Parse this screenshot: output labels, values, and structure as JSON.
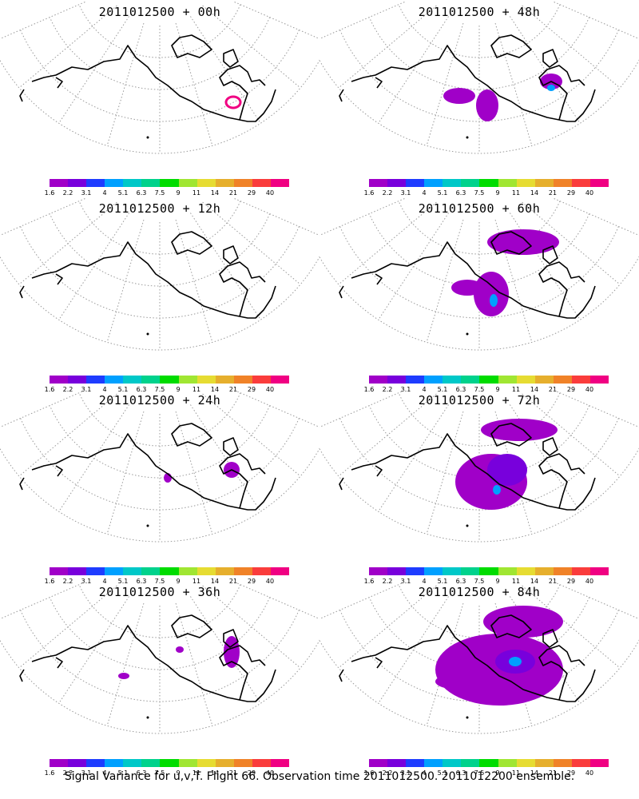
{
  "panels": [
    {
      "title": "2011012500 + 00h"
    },
    {
      "title": "2011012500 + 48h"
    },
    {
      "title": "2011012500 + 12h"
    },
    {
      "title": "2011012500 + 60h"
    },
    {
      "title": "2011012500 + 24h"
    },
    {
      "title": "2011012500 + 72h"
    },
    {
      "title": "2011012500 + 36h"
    },
    {
      "title": "2011012500 + 84h"
    }
  ],
  "colorbar": {
    "colors": [
      "#a000c8",
      "#7800dc",
      "#1e3cff",
      "#00a0ff",
      "#00c8c8",
      "#00d28c",
      "#00dc00",
      "#a0e632",
      "#e6dc32",
      "#e6af2d",
      "#f08228",
      "#fa3c3c",
      "#f00082"
    ],
    "labels": [
      "1.6",
      "2.2",
      "3.1",
      "4",
      "5.1",
      "6.3",
      "7.5",
      "9",
      "11",
      "14",
      "21",
      "29",
      "40"
    ]
  },
  "footer": "Signal Variance for u,v,T. Flight 66. Observation time 2011012500. 2011012200 ensemble."
}
